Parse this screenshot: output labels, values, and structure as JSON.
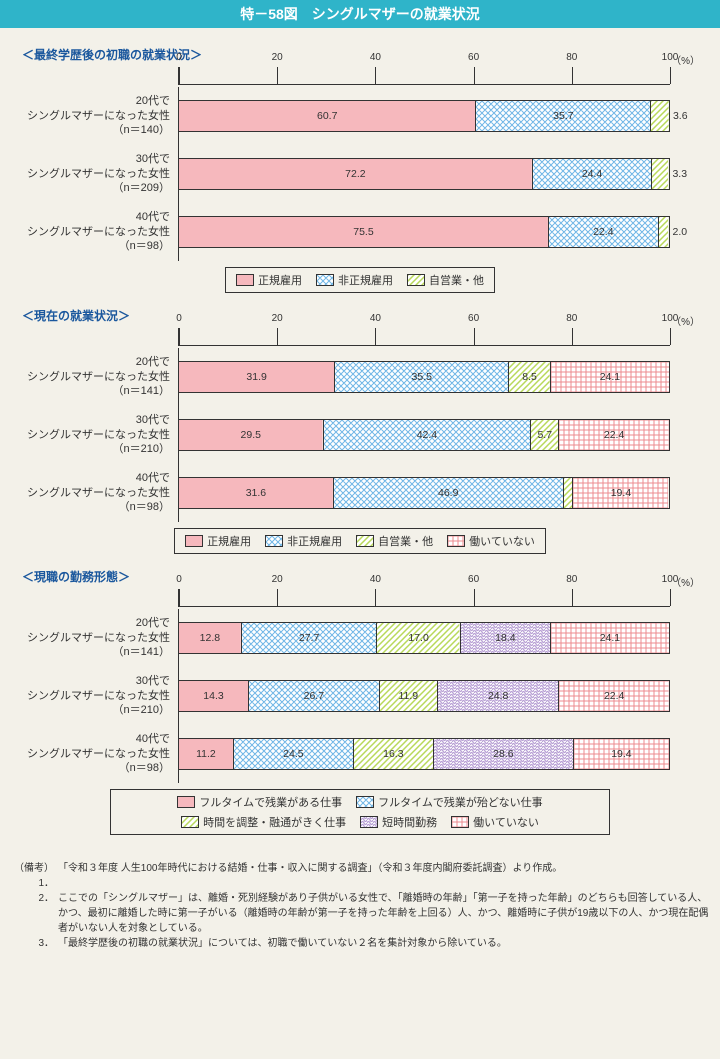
{
  "title": "特－58図　シングルマザーの就業状況",
  "axis": {
    "ticks": [
      0,
      20,
      40,
      60,
      80,
      100
    ],
    "unit": "（%）"
  },
  "patterns": {
    "pink": "url(#p-pink)",
    "blue": "url(#p-blue)",
    "green": "url(#p-green)",
    "purple": "url(#p-purple)",
    "red": "url(#p-red)"
  },
  "sections": [
    {
      "title": "＜最終学歴後の初職の就業状況＞",
      "legend": [
        {
          "label": "正規雇用",
          "pat": "pink"
        },
        {
          "label": "非正規雇用",
          "pat": "blue"
        },
        {
          "label": "自営業・他",
          "pat": "green"
        }
      ],
      "rows": [
        {
          "l1": "20代で",
          "l2": "シングルマザーになった女性",
          "l3": "（n＝140）",
          "seg": [
            {
              "v": 60.7,
              "pat": "pink"
            },
            {
              "v": 35.7,
              "pat": "blue"
            },
            {
              "v": 3.6,
              "pat": "green",
              "out": true
            }
          ]
        },
        {
          "l1": "30代で",
          "l2": "シングルマザーになった女性",
          "l3": "（n＝209）",
          "seg": [
            {
              "v": 72.2,
              "pat": "pink"
            },
            {
              "v": 24.4,
              "pat": "blue"
            },
            {
              "v": 3.3,
              "pat": "green",
              "out": true
            }
          ]
        },
        {
          "l1": "40代で",
          "l2": "シングルマザーになった女性",
          "l3": "（n＝98）",
          "seg": [
            {
              "v": 75.5,
              "pat": "pink"
            },
            {
              "v": 22.4,
              "pat": "blue"
            },
            {
              "v": 2.0,
              "pat": "green",
              "out": true
            }
          ]
        }
      ]
    },
    {
      "title": "＜現在の就業状況＞",
      "legend": [
        {
          "label": "正規雇用",
          "pat": "pink"
        },
        {
          "label": "非正規雇用",
          "pat": "blue"
        },
        {
          "label": "自営業・他",
          "pat": "green"
        },
        {
          "label": "働いていない",
          "pat": "red"
        }
      ],
      "rows": [
        {
          "l1": "20代で",
          "l2": "シングルマザーになった女性",
          "l3": "（n＝141）",
          "seg": [
            {
              "v": 31.9,
              "pat": "pink"
            },
            {
              "v": 35.5,
              "pat": "blue"
            },
            {
              "v": 8.5,
              "pat": "green"
            },
            {
              "v": 24.1,
              "pat": "red"
            }
          ]
        },
        {
          "l1": "30代で",
          "l2": "シングルマザーになった女性",
          "l3": "（n＝210）",
          "seg": [
            {
              "v": 29.5,
              "pat": "pink"
            },
            {
              "v": 42.4,
              "pat": "blue"
            },
            {
              "v": 5.7,
              "pat": "green"
            },
            {
              "v": 22.4,
              "pat": "red"
            }
          ]
        },
        {
          "l1": "40代で",
          "l2": "シングルマザーになった女性",
          "l3": "（n＝98）",
          "seg": [
            {
              "v": 31.6,
              "pat": "pink"
            },
            {
              "v": 46.9,
              "pat": "blue"
            },
            {
              "v": 2.0,
              "pat": "green",
              "out": true
            },
            {
              "v": 19.4,
              "pat": "red"
            }
          ]
        }
      ]
    },
    {
      "title": "＜現職の勤務形態＞",
      "legend": [
        {
          "label": "フルタイムで残業がある仕事",
          "pat": "pink"
        },
        {
          "label": "フルタイムで残業が殆どない仕事",
          "pat": "blue"
        },
        {
          "label": "時間を調整・融通がきく仕事",
          "pat": "green"
        },
        {
          "label": "短時間勤務",
          "pat": "purple"
        },
        {
          "label": "働いていない",
          "pat": "red"
        }
      ],
      "rows": [
        {
          "l1": "20代で",
          "l2": "シングルマザーになった女性",
          "l3": "（n＝141）",
          "seg": [
            {
              "v": 12.8,
              "pat": "pink"
            },
            {
              "v": 27.7,
              "pat": "blue"
            },
            {
              "v": 17.0,
              "pat": "green"
            },
            {
              "v": 18.4,
              "pat": "purple"
            },
            {
              "v": 24.1,
              "pat": "red"
            }
          ]
        },
        {
          "l1": "30代で",
          "l2": "シングルマザーになった女性",
          "l3": "（n＝210）",
          "seg": [
            {
              "v": 14.3,
              "pat": "pink"
            },
            {
              "v": 26.7,
              "pat": "blue"
            },
            {
              "v": 11.9,
              "pat": "green"
            },
            {
              "v": 24.8,
              "pat": "purple"
            },
            {
              "v": 22.4,
              "pat": "red"
            }
          ]
        },
        {
          "l1": "40代で",
          "l2": "シングルマザーになった女性",
          "l3": "（n＝98）",
          "seg": [
            {
              "v": 11.2,
              "pat": "pink"
            },
            {
              "v": 24.5,
              "pat": "blue"
            },
            {
              "v": 16.3,
              "pat": "green"
            },
            {
              "v": 28.6,
              "pat": "purple"
            },
            {
              "v": 19.4,
              "pat": "red"
            }
          ]
        }
      ]
    }
  ],
  "notes": {
    "prefix": "（備考）",
    "items": [
      "「令和３年度 人生100年時代における結婚・仕事・収入に関する調査」（令和３年度内閣府委託調査）より作成。",
      "ここでの「シングルマザー」は、離婚・死別経験があり子供がいる女性で、「離婚時の年齢」「第一子を持った年齢」のどちらも回答している人、かつ、最初に離婚した時に第一子がいる（離婚時の年齢が第一子を持った年齢を上回る）人、かつ、離婚時に子供が19歳以下の人、かつ現在配偶者がいない人を対象としている。",
      "「最終学歴後の初職の就業状況」については、初職で働いていない２名を集計対象から除いている。"
    ]
  }
}
